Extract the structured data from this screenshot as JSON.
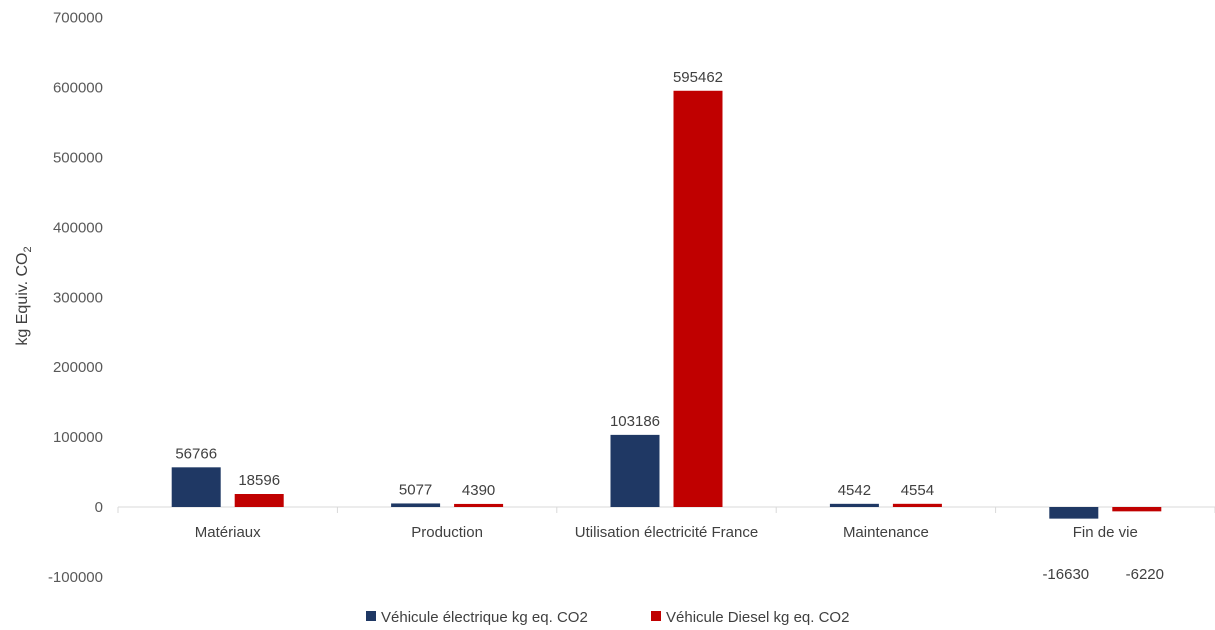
{
  "chart_data": {
    "type": "bar",
    "categories": [
      "Matériaux",
      "Production",
      "Utilisation électricité France",
      "Maintenance",
      "Fin de vie"
    ],
    "series": [
      {
        "name": "Véhicule électrique kg eq. CO2",
        "color": "#1f3864",
        "values": [
          56766,
          5077,
          103186,
          4542,
          -16630
        ]
      },
      {
        "name": "Véhicule Diesel kg eq. CO2",
        "color": "#c00000",
        "values": [
          18596,
          4390,
          595462,
          4554,
          -6220
        ]
      }
    ],
    "title": "",
    "xlabel": "",
    "ylabel": "kg Equiv. CO",
    "ylabel_subscript": "2",
    "ylim": [
      -100000,
      700000
    ],
    "yticks": [
      -100000,
      0,
      100000,
      200000,
      300000,
      400000,
      500000,
      600000,
      700000
    ],
    "grid": false,
    "legend_position": "bottom",
    "axis_color": "#d9d9d9"
  }
}
